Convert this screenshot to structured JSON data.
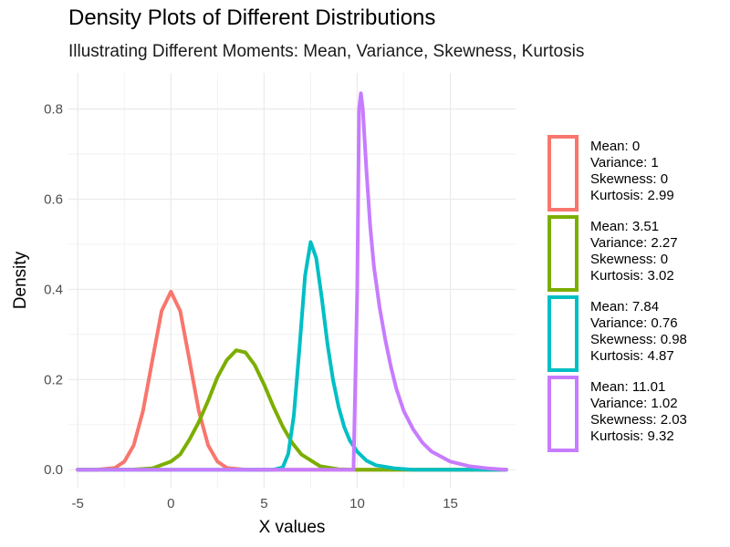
{
  "chart_data": {
    "type": "line",
    "title": "Density Plots of Different Distributions",
    "subtitle": "Illustrating Different Moments: Mean, Variance, Skewness, Kurtosis",
    "xlabel": "X values",
    "ylabel": "Density",
    "xlim": [
      -5.5,
      18.5
    ],
    "ylim": [
      -0.04,
      0.88
    ],
    "xticks": [
      -5,
      0,
      5,
      10,
      15
    ],
    "xtick_labels": [
      "-5",
      "0",
      "5",
      "10",
      "15"
    ],
    "yticks": [
      0.0,
      0.2,
      0.4,
      0.6,
      0.8
    ],
    "ytick_labels": [
      "0.0",
      "0.2",
      "0.4",
      "0.6",
      "0.8"
    ],
    "grid": true,
    "legend_position": "right",
    "series": [
      {
        "legend": [
          "Mean: 0",
          "Variance: 1",
          "Skewness: 0",
          "Kurtosis: 2.99"
        ],
        "color": "#F8766D",
        "x": [
          -5,
          -4,
          -3,
          -2.5,
          -2,
          -1.5,
          -1,
          -0.5,
          0,
          0.5,
          1,
          1.5,
          2,
          2.5,
          3,
          4,
          5,
          6,
          18
        ],
        "y": [
          0,
          0.0001,
          0.004,
          0.018,
          0.054,
          0.13,
          0.242,
          0.352,
          0.395,
          0.352,
          0.242,
          0.13,
          0.054,
          0.018,
          0.004,
          0.0001,
          0,
          0,
          0
        ]
      },
      {
        "legend": [
          "Mean: 3.51",
          "Variance: 2.27",
          "Skewness: 0",
          "Kurtosis: 3.02"
        ],
        "color": "#7CAE00",
        "x": [
          -5,
          -2,
          -1,
          0,
          0.5,
          1,
          1.5,
          2,
          2.5,
          3,
          3.5,
          4,
          4.5,
          5,
          5.5,
          6,
          6.5,
          7,
          8,
          9,
          10,
          18
        ],
        "y": [
          0,
          0.0004,
          0.003,
          0.018,
          0.034,
          0.067,
          0.106,
          0.153,
          0.205,
          0.243,
          0.265,
          0.26,
          0.232,
          0.189,
          0.14,
          0.096,
          0.06,
          0.034,
          0.008,
          0.001,
          0,
          0
        ]
      },
      {
        "legend": [
          "Mean: 7.84",
          "Variance: 0.76",
          "Skewness: 0.98",
          "Kurtosis: 4.87"
        ],
        "color": "#00BFC4",
        "x": [
          -5,
          5.5,
          6,
          6.3,
          6.6,
          6.9,
          7.2,
          7.5,
          7.8,
          8.1,
          8.4,
          8.7,
          9.0,
          9.3,
          9.6,
          10.0,
          10.5,
          11,
          12,
          13,
          18
        ],
        "y": [
          0,
          0,
          0.005,
          0.035,
          0.12,
          0.27,
          0.43,
          0.505,
          0.47,
          0.38,
          0.28,
          0.2,
          0.14,
          0.095,
          0.065,
          0.04,
          0.02,
          0.01,
          0.003,
          0,
          0
        ]
      },
      {
        "legend": [
          "Mean: 11.01",
          "Variance: 1.02",
          "Skewness: 2.03",
          "Kurtosis: 9.32"
        ],
        "color": "#C77CFF",
        "x": [
          -5,
          9.8,
          10.0,
          10.1,
          10.2,
          10.3,
          10.5,
          10.7,
          10.9,
          11.2,
          11.5,
          11.8,
          12.1,
          12.5,
          13,
          13.5,
          14,
          15,
          16,
          17,
          18
        ],
        "y": [
          0,
          0,
          0.4,
          0.8,
          0.835,
          0.8,
          0.66,
          0.54,
          0.45,
          0.36,
          0.29,
          0.23,
          0.18,
          0.13,
          0.09,
          0.06,
          0.04,
          0.018,
          0.008,
          0.003,
          0
        ]
      }
    ]
  }
}
